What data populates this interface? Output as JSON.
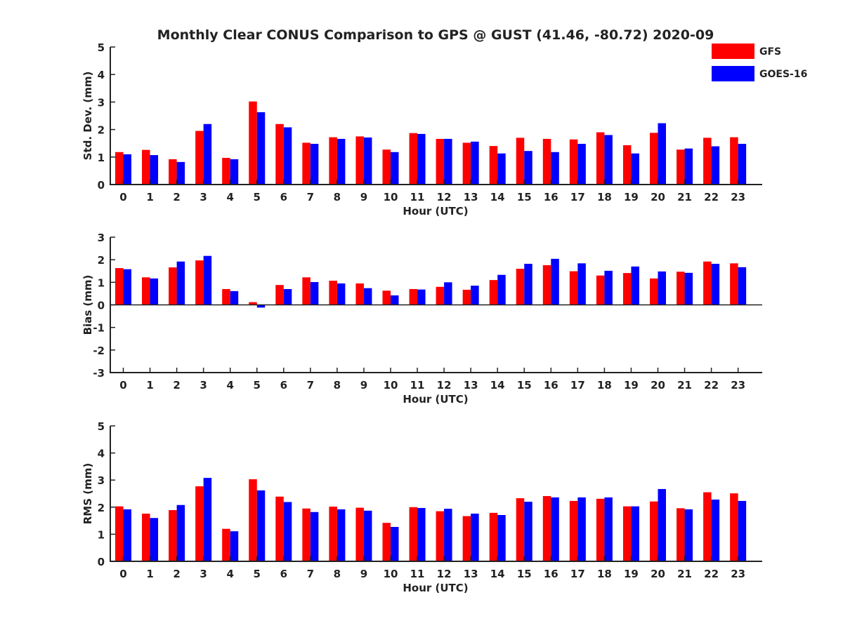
{
  "figure": {
    "title": "Monthly Clear CONUS Comparison to GPS @ GUST (41.46, -80.72) 2020-09",
    "legend": {
      "placement": "top-right",
      "entries": [
        {
          "name": "GFS",
          "color": "#ff0000"
        },
        {
          "name": "GOES-16",
          "color": "#0000ff"
        }
      ]
    }
  },
  "chart_data": [
    {
      "type": "bar",
      "ylabel": "Std. Dev. (mm)",
      "xlabel": "Hour (UTC)",
      "ylim": [
        0,
        5
      ],
      "yticks": [
        0,
        1,
        2,
        3,
        4,
        5
      ],
      "categories": [
        "0",
        "1",
        "2",
        "3",
        "4",
        "5",
        "6",
        "7",
        "8",
        "9",
        "10",
        "11",
        "12",
        "13",
        "14",
        "15",
        "16",
        "17",
        "18",
        "19",
        "20",
        "21",
        "22",
        "23"
      ],
      "series": [
        {
          "name": "GFS",
          "color": "#ff0000",
          "values": [
            1.18,
            1.26,
            0.92,
            1.95,
            0.97,
            3.02,
            2.2,
            1.52,
            1.72,
            1.75,
            1.27,
            1.87,
            1.66,
            1.52,
            1.4,
            1.7,
            1.66,
            1.64,
            1.9,
            1.43,
            1.88,
            1.27,
            1.7,
            1.72
          ]
        },
        {
          "name": "GOES-16",
          "color": "#0000ff",
          "values": [
            1.1,
            1.07,
            0.82,
            2.2,
            0.92,
            2.63,
            2.08,
            1.48,
            1.66,
            1.71,
            1.18,
            1.84,
            1.66,
            1.56,
            1.13,
            1.22,
            1.18,
            1.48,
            1.8,
            1.13,
            2.23,
            1.31,
            1.39,
            1.48
          ]
        }
      ]
    },
    {
      "type": "bar",
      "ylabel": "Bias (mm)",
      "xlabel": "Hour (UTC)",
      "ylim": [
        -3,
        3
      ],
      "yticks": [
        -3,
        -2,
        -1,
        0,
        1,
        2,
        3
      ],
      "categories": [
        "0",
        "1",
        "2",
        "3",
        "4",
        "5",
        "6",
        "7",
        "8",
        "9",
        "10",
        "11",
        "12",
        "13",
        "14",
        "15",
        "16",
        "17",
        "18",
        "19",
        "20",
        "21",
        "22",
        "23"
      ],
      "series": [
        {
          "name": "GFS",
          "color": "#ff0000",
          "values": [
            1.63,
            1.22,
            1.66,
            1.97,
            0.7,
            0.12,
            0.88,
            1.22,
            1.07,
            0.95,
            0.63,
            0.7,
            0.8,
            0.67,
            1.1,
            1.6,
            1.76,
            1.49,
            1.3,
            1.41,
            1.17,
            1.47,
            1.92,
            1.84
          ]
        },
        {
          "name": "GOES-16",
          "color": "#0000ff",
          "values": [
            1.58,
            1.17,
            1.92,
            2.17,
            0.61,
            -0.12,
            0.7,
            1.01,
            0.95,
            0.74,
            0.42,
            0.68,
            1.0,
            0.85,
            1.33,
            1.82,
            2.04,
            1.84,
            1.51,
            1.7,
            1.48,
            1.42,
            1.82,
            1.67
          ]
        }
      ]
    },
    {
      "type": "bar",
      "ylabel": "RMS (mm)",
      "xlabel": "Hour (UTC)",
      "ylim": [
        0,
        5
      ],
      "yticks": [
        0,
        1,
        2,
        3,
        4,
        5
      ],
      "categories": [
        "0",
        "1",
        "2",
        "3",
        "4",
        "5",
        "6",
        "7",
        "8",
        "9",
        "10",
        "11",
        "12",
        "13",
        "14",
        "15",
        "16",
        "17",
        "18",
        "19",
        "20",
        "21",
        "22",
        "23"
      ],
      "series": [
        {
          "name": "GFS",
          "color": "#ff0000",
          "values": [
            2.03,
            1.76,
            1.89,
            2.77,
            1.2,
            3.03,
            2.39,
            1.95,
            2.02,
            1.98,
            1.42,
            2.0,
            1.85,
            1.67,
            1.79,
            2.33,
            2.41,
            2.23,
            2.31,
            2.03,
            2.21,
            1.96,
            2.55,
            2.51
          ]
        },
        {
          "name": "GOES-16",
          "color": "#0000ff",
          "values": [
            1.92,
            1.6,
            2.08,
            3.08,
            1.11,
            2.62,
            2.19,
            1.82,
            1.92,
            1.87,
            1.27,
            1.97,
            1.94,
            1.76,
            1.71,
            2.2,
            2.36,
            2.36,
            2.36,
            2.03,
            2.67,
            1.92,
            2.28,
            2.23
          ]
        }
      ]
    }
  ]
}
